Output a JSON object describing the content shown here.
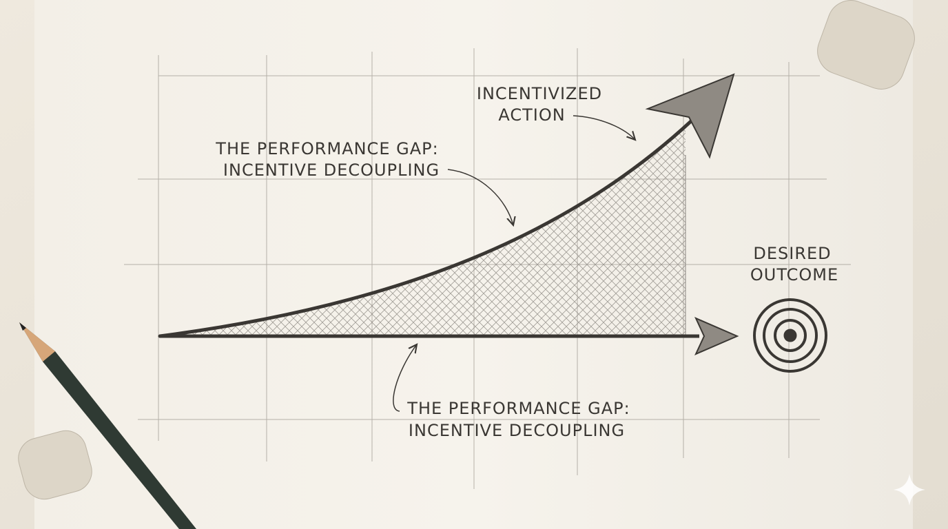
{
  "labels": {
    "incentivized_action": [
      "INCENTIVIZED",
      "ACTION"
    ],
    "gap_upper": [
      "THE PERFORMANCE GAP:",
      "INCENTIVE DECOUPLING"
    ],
    "desired_outcome": [
      "DESIRED",
      "OUTCOME"
    ],
    "gap_lower": [
      "THE PERFORMANCE GAP:",
      "INCENTIVE DECOUPLING"
    ]
  }
}
